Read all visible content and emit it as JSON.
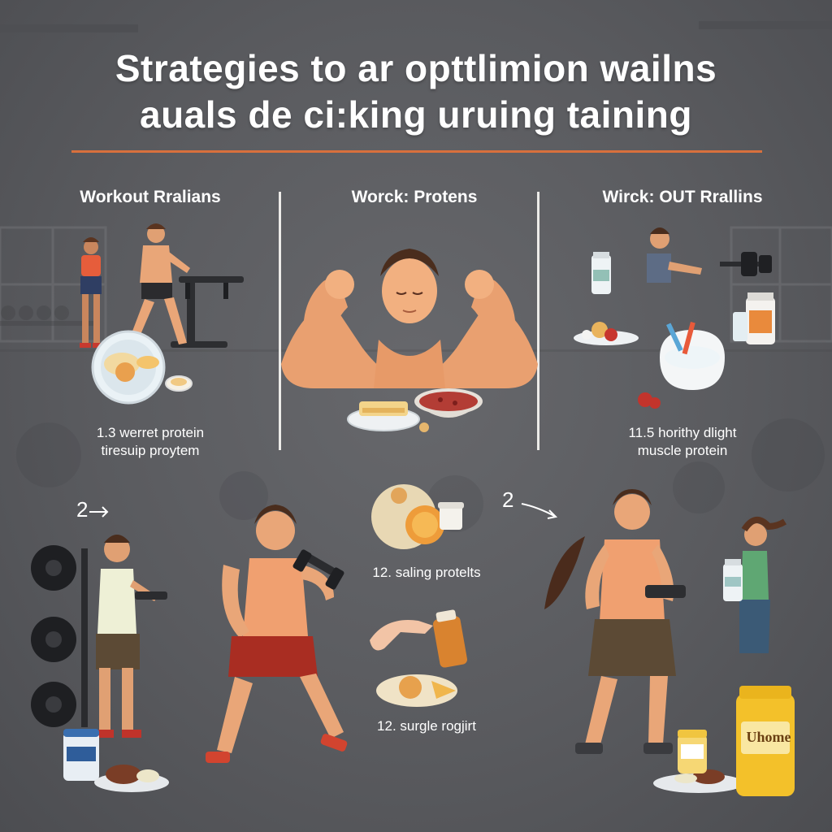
{
  "header": {
    "title_line1": "Strategies to ar opttlimion wailns",
    "title_line2": "auals de ci:king uruing taining"
  },
  "columns": [
    {
      "heading": "Workout Rralians",
      "caption_line1": "1.3 werret protein",
      "caption_line2": "tiresuip proytem"
    },
    {
      "heading": "Worck: Protens"
    },
    {
      "heading": "Wirck: OUT Rrallins",
      "caption_line1": "11.5 horithy dlight",
      "caption_line2": "muscle protein"
    }
  ],
  "lower": {
    "step_left": "2",
    "step_right": "2",
    "caption_a": "12. saling protelts",
    "caption_b": "12. surgle rogjirt",
    "tub_label": "Uhome"
  },
  "colors": {
    "background": "#5b5c60",
    "accent_rule": "#d8703d",
    "skin": "#e9a678",
    "tank_orange": "#f0a070",
    "shorts_red": "#a92d22"
  },
  "icons": [
    "protein-bottle-icon",
    "dumbbell-icon",
    "plate-icon",
    "arrow-icon",
    "pill-bottle-icon"
  ]
}
